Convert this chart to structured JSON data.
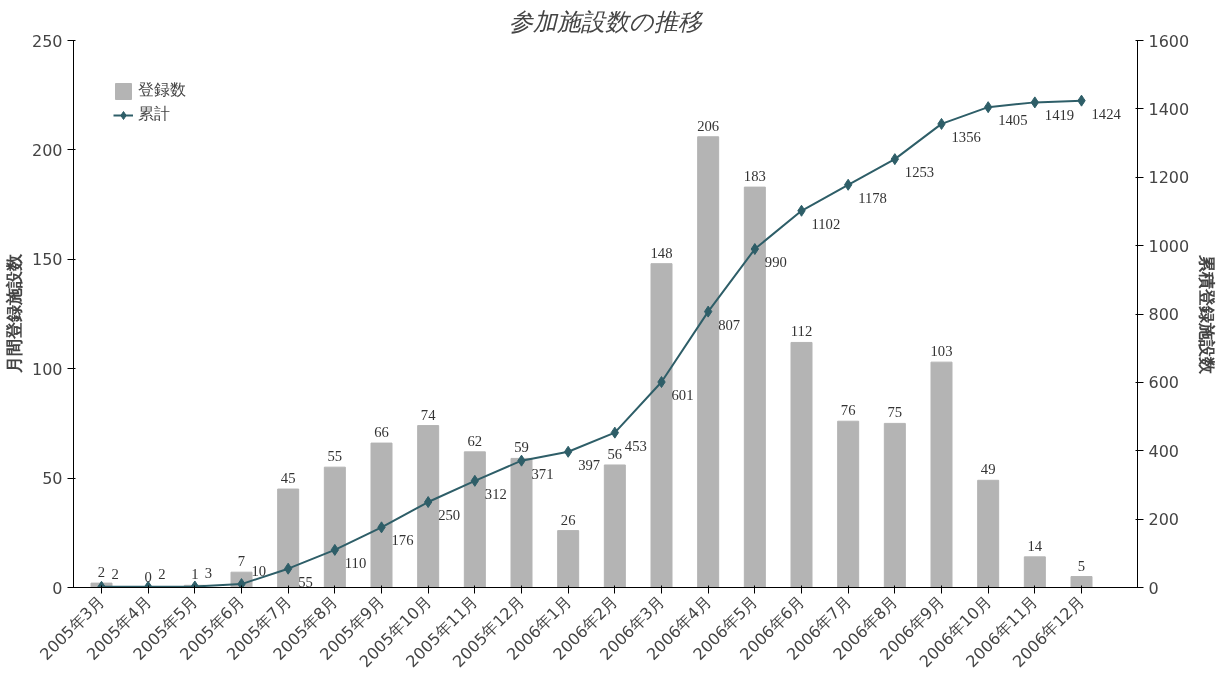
{
  "chart_data": {
    "type": "bar",
    "title": "参加施設数の推移",
    "ylabel": "月間登録施設数",
    "y2label": "累積登録施設数",
    "categories": [
      "2005年3月",
      "2005年4月",
      "2005年5月",
      "2005年6月",
      "2005年7月",
      "2005年8月",
      "2005年9月",
      "2005年10月",
      "2005年11月",
      "2005年12月",
      "2006年1月",
      "2006年2月",
      "2006年3月",
      "2006年4月",
      "2006年5月",
      "2006年6月",
      "2006年7月",
      "2006年8月",
      "2006年9月",
      "2006年10月",
      "2006年11月",
      "2006年12月"
    ],
    "series": [
      {
        "name": "登録数",
        "color": "#b4b4b4",
        "values": [
          2,
          0,
          1,
          7,
          45,
          55,
          66,
          74,
          62,
          59,
          26,
          56,
          148,
          206,
          183,
          112,
          76,
          75,
          103,
          49,
          14,
          5
        ]
      },
      {
        "name": "累計",
        "type": "line",
        "axis": "y2",
        "color": "#2e5e68",
        "marker": "diamond",
        "values": [
          2,
          2,
          3,
          10,
          55,
          110,
          176,
          250,
          312,
          371,
          397,
          453,
          601,
          807,
          990,
          1102,
          1178,
          1253,
          1356,
          1405,
          1419,
          1424
        ]
      }
    ],
    "ylim": [
      0,
      250
    ],
    "yticks": [
      0,
      50,
      100,
      150,
      200,
      250
    ],
    "y2lim": [
      0,
      1600
    ],
    "y2ticks": [
      0,
      200,
      400,
      600,
      800,
      1000,
      1200,
      1400,
      1600
    ],
    "data_labels": true,
    "legend": "top left",
    "grid": false
  }
}
